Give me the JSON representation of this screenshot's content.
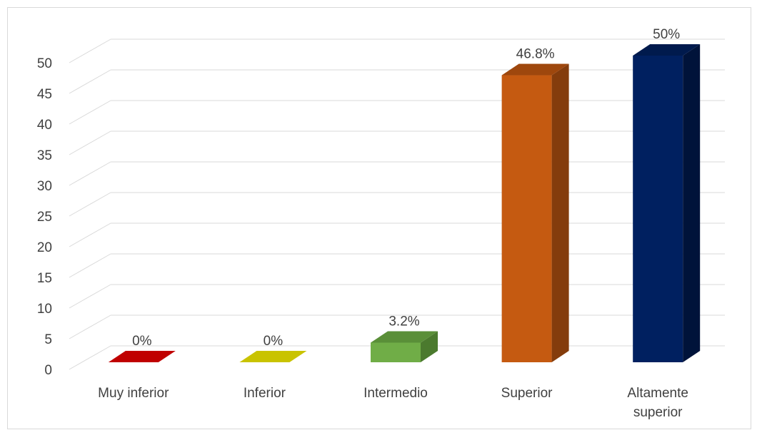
{
  "chart_data": {
    "type": "bar",
    "title": "",
    "xlabel": "",
    "ylabel": "",
    "ylim": [
      0,
      50
    ],
    "yticks": [
      0,
      5,
      10,
      15,
      20,
      25,
      30,
      35,
      40,
      45,
      50
    ],
    "grid": true,
    "legend": "none",
    "categories": [
      [
        "Muy inferior"
      ],
      [
        "Inferior"
      ],
      [
        "Intermedio"
      ],
      [
        "Superior"
      ],
      [
        "Altamente",
        "superior"
      ]
    ],
    "values": [
      0,
      0,
      3.2,
      46.8,
      50
    ],
    "data_labels": [
      "0%",
      "0%",
      "3.2%",
      "46.8%",
      "50%"
    ],
    "colors": [
      {
        "front": "#c00000",
        "top": "#c00000",
        "side": "#900000"
      },
      {
        "front": "#c9c300",
        "top": "#c9c300",
        "side": "#9a9500"
      },
      {
        "front": "#70ad47",
        "top": "#5a8f38",
        "side": "#4b7a2e"
      },
      {
        "front": "#c55a11",
        "top": "#9e470d",
        "side": "#843c0c"
      },
      {
        "front": "#002060",
        "top": "#001a4d",
        "side": "#00133a"
      }
    ]
  }
}
